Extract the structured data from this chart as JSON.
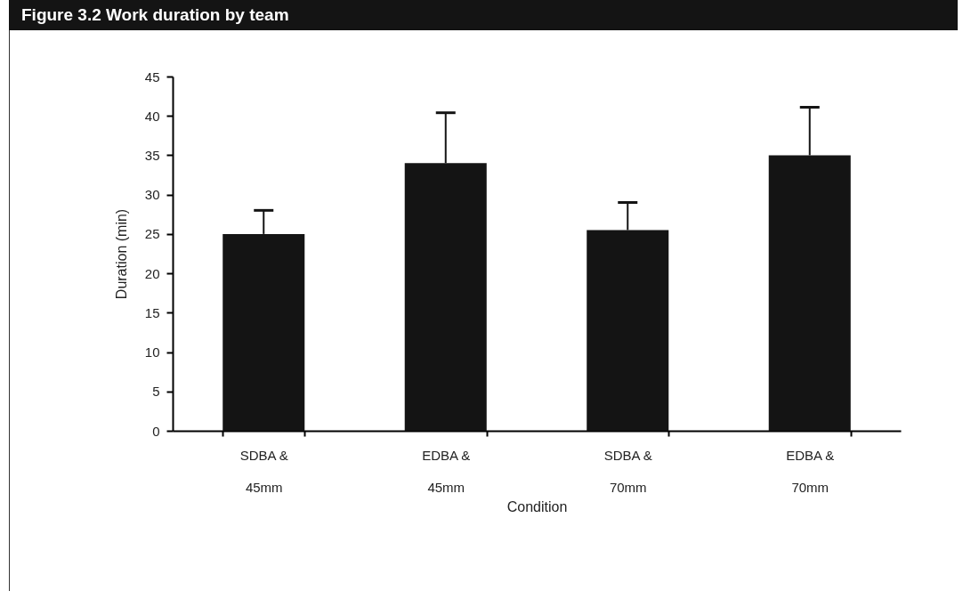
{
  "chart_data": {
    "type": "bar",
    "title": "Figure 3.2 Work duration by team",
    "xlabel": "Condition",
    "ylabel": "Duration (min)",
    "categories": [
      "SDBA & 45mm",
      "EDBA & 45mm",
      "SDBA & 70mm",
      "EDBA & 70mm"
    ],
    "values": [
      25,
      34,
      25.5,
      35
    ],
    "errors": [
      [
        25,
        28
      ],
      [
        34,
        40.4
      ],
      [
        25.5,
        29
      ],
      [
        35,
        41.1
      ]
    ],
    "color": "#141414",
    "ylim": [
      0,
      45
    ],
    "yticks": [
      0,
      5,
      10,
      15,
      20,
      25,
      30,
      35,
      40,
      45
    ],
    "grid": false
  }
}
